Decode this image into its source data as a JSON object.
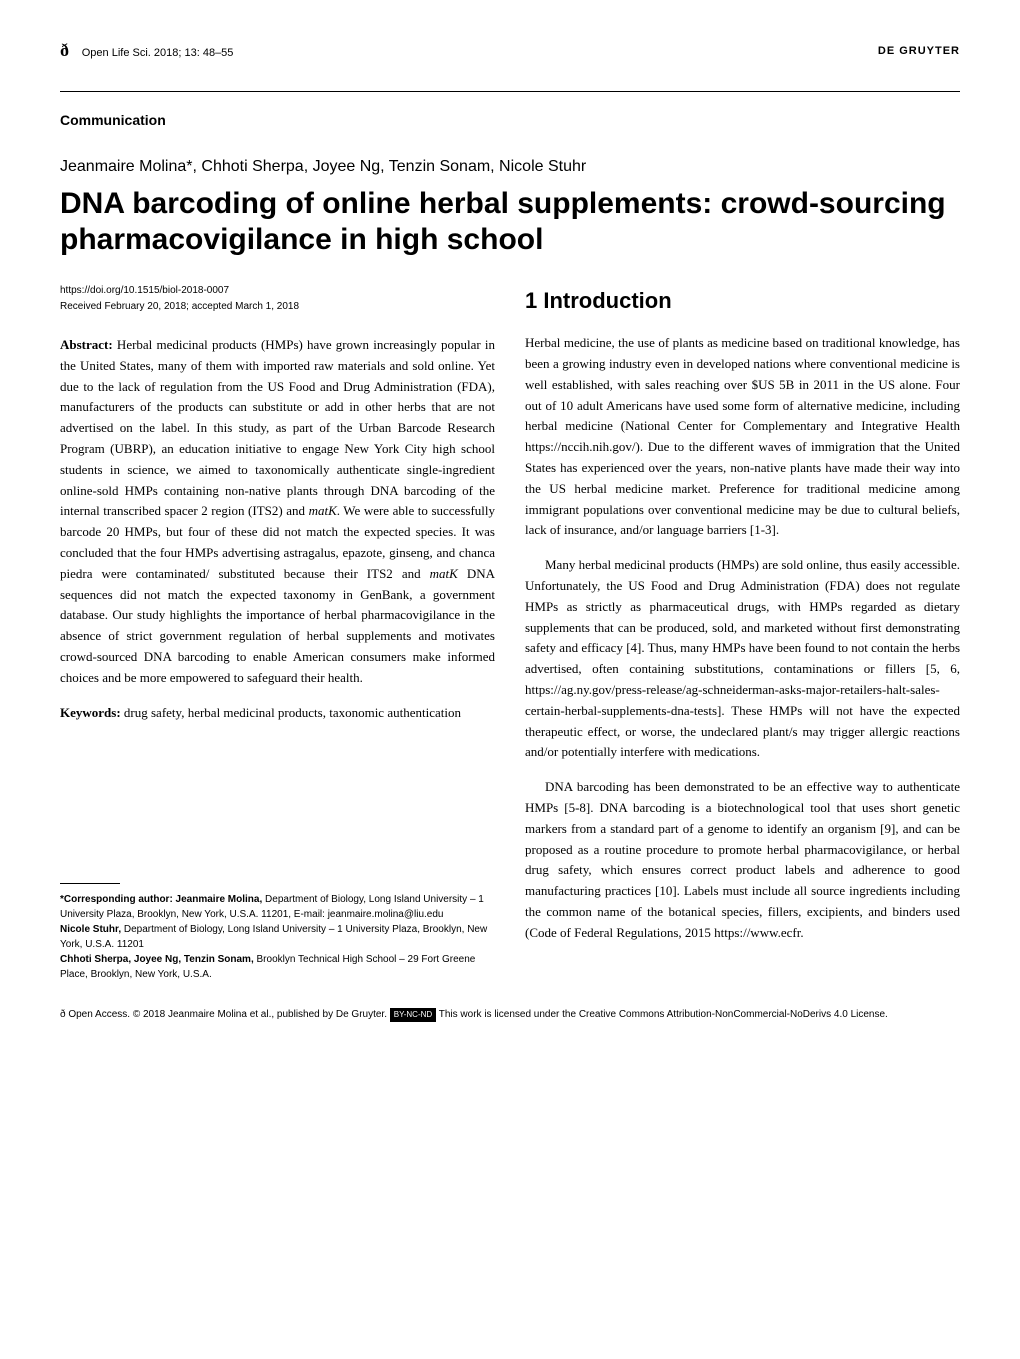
{
  "header": {
    "journal_ref": "Open Life Sci. 2018; 13: 48–55",
    "publisher": "DE GRUYTER",
    "open_access_symbol": "ð"
  },
  "article": {
    "type_label": "Communication",
    "authors": "Jeanmaire Molina*, Chhoti Sherpa, Joyee Ng, Tenzin Sonam, Nicole Stuhr",
    "title": "DNA barcoding of online herbal supplements: crowd-sourcing pharmacovigilance in high school",
    "doi": "https://doi.org/10.1515/biol-2018-0007",
    "received": "Received February 20, 2018; accepted March 1, 2018"
  },
  "abstract": {
    "label": "Abstract:",
    "text": " Herbal medicinal products (HMPs) have grown increasingly popular in the United States, many of them with imported raw materials and sold online. Yet due to the lack of regulation from the US Food and Drug Administration (FDA), manufacturers of the products can substitute or add in other herbs that are not advertised on the label. In this study, as part of the Urban Barcode Research Program (UBRP), an education initiative to engage New York City high school students in science, we aimed to taxonomically authenticate single-ingredient online-sold HMPs containing non-native plants through DNA barcoding of the internal transcribed spacer 2 region (ITS2) and ",
    "matk1": "matK",
    "text2": ". We were able to successfully barcode 20 HMPs, but four of these did not match the expected species. It was concluded that the four HMPs advertising astragalus, epazote, ginseng, and chanca piedra were contaminated/ substituted because their ITS2 and ",
    "matk2": "matK",
    "text3": " DNA sequences did not match the expected taxonomy in GenBank, a government database. Our study highlights the importance of herbal pharmacovigilance in the absence of strict government regulation of herbal supplements and motivates crowd-sourced DNA barcoding to enable American consumers make informed choices and be more empowered to safeguard their health."
  },
  "keywords": {
    "label": "Keywords:",
    "text": " drug safety, herbal medicinal products, taxonomic authentication"
  },
  "introduction": {
    "heading": "1 Introduction",
    "para1": "Herbal medicine, the use of plants as medicine based on traditional knowledge, has been a growing industry even in developed nations where conventional medicine is well established, with sales reaching over $US 5B in 2011 in the US alone. Four out of 10 adult Americans have used some form of alternative medicine, including herbal medicine (National Center for Complementary and Integrative Health https://nccih.nih.gov/). Due to the different waves of immigration that the United States has experienced over the years, non-native plants have made their way into the US herbal medicine market. Preference for traditional medicine among immigrant populations over conventional medicine may be due to cultural beliefs, lack of insurance, and/or language barriers [1-3].",
    "para2": "Many herbal medicinal products (HMPs) are sold online, thus easily accessible. Unfortunately, the US Food and Drug Administration (FDA) does not regulate HMPs as strictly as pharmaceutical drugs, with HMPs regarded as dietary supplements that can be produced, sold, and marketed without first demonstrating safety and efficacy [4]. Thus, many HMPs have been found to not contain the herbs advertised, often containing substitutions, contaminations or fillers [5, 6, https://ag.ny.gov/press-release/ag-schneiderman-asks-major-retailers-halt-sales-certain-herbal-supplements-dna-tests]. These HMPs will not have the expected therapeutic effect, or worse, the undeclared plant/s may trigger allergic reactions and/or potentially interfere with medications.",
    "para3": "DNA barcoding has been demonstrated to be an effective way to authenticate HMPs [5-8]. DNA barcoding is a biotechnological tool that uses short genetic markers from a standard part of a genome to identify an organism [9], and can be proposed as a routine procedure to promote herbal pharmacovigilance, or herbal drug safety, which ensures correct product labels and adherence to good manufacturing practices [10]. Labels must include all source ingredients including the common name of the botanical species, fillers, excipients, and binders used (Code of Federal Regulations, 2015 https://www.ecfr."
  },
  "footnotes": {
    "corresponding_label": "*Corresponding author: Jeanmaire Molina,",
    "corresponding_text": " Department of Biology, Long Island University – 1 University Plaza, Brooklyn, New York, U.S.A. 11201, E-mail: jeanmaire.molina@liu.edu",
    "stuhr_label": "Nicole Stuhr,",
    "stuhr_text": " Department of Biology, Long Island University – 1 University Plaza, Brooklyn, New York, U.S.A. 11201",
    "others_label": "Chhoti Sherpa, Joyee Ng, Tenzin Sonam,",
    "others_text": " Brooklyn Technical High School – 29 Fort Greene Place, Brooklyn, New York, U.S.A."
  },
  "license": {
    "symbol": "ð",
    "text1": " Open Access. © 2018 Jeanmaire Molina et al., published by De Gruyter. ",
    "badge": "BY-NC-ND",
    "text2": " This work is licensed under the Creative Commons Attribution-NonCommercial-NoDerivs 4.0 License."
  }
}
